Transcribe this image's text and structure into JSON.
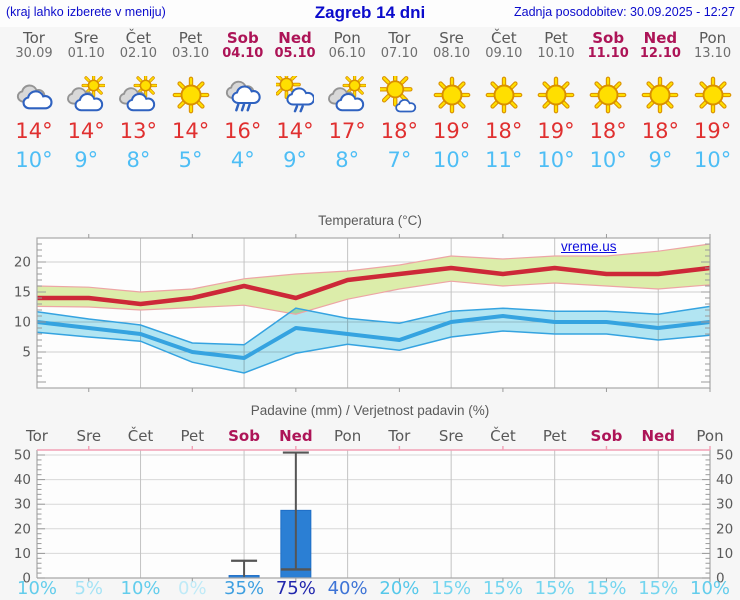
{
  "header": {
    "left_note": "(kraj lahko izberete v meniju)",
    "title": "Zagreb 14 dni",
    "updated": "Zadnja posodobitev: 30.09.2025 - 12:27"
  },
  "watermark": "vreme.us",
  "colors": {
    "header_blue": "#0b0bcc",
    "weekend": "#ad1457",
    "day_gray": "#585858",
    "tmax_red": "#e03030",
    "tmin_blue": "#4ebef5",
    "chart_max_line": "#cd2838",
    "chart_min_line": "#35a3e0",
    "max_band_fill": "#dcedaa",
    "max_band_edge": "#eda5a5",
    "min_band_fill": "#b4e7f4",
    "bar_blue": "#2b7fd4",
    "whisker_gray": "#555555",
    "plot_border": "#a8a8a8",
    "precip_top_border": "#f2a0b5"
  },
  "days": [
    {
      "name": "Tor",
      "date": "30.09",
      "weekend": false,
      "icon": "cloudy",
      "tmax": "14°",
      "tmin": "10°",
      "prob": "10%",
      "prob_color": "#63cdec"
    },
    {
      "name": "Sre",
      "date": "01.10",
      "weekend": false,
      "icon": "partly-cloudy",
      "tmax": "14°",
      "tmin": "9°",
      "prob": "5%",
      "prob_color": "#a5e3f5"
    },
    {
      "name": "Čet",
      "date": "02.10",
      "weekend": false,
      "icon": "partly-cloudy",
      "tmax": "13°",
      "tmin": "8°",
      "prob": "10%",
      "prob_color": "#63cdec"
    },
    {
      "name": "Pet",
      "date": "03.10",
      "weekend": false,
      "icon": "sunny",
      "tmax": "14°",
      "tmin": "5°",
      "prob": "0%",
      "prob_color": "#bfeaf7"
    },
    {
      "name": "Sob",
      "date": "04.10",
      "weekend": true,
      "icon": "rain",
      "tmax": "16°",
      "tmin": "4°",
      "prob": "35%",
      "prob_color": "#3e9fe0"
    },
    {
      "name": "Ned",
      "date": "05.10",
      "weekend": true,
      "icon": "sun-shower",
      "tmax": "14°",
      "tmin": "9°",
      "prob": "75%",
      "prob_color": "#2127ad"
    },
    {
      "name": "Pon",
      "date": "06.10",
      "weekend": false,
      "icon": "partly-cloudy",
      "tmax": "17°",
      "tmin": "8°",
      "prob": "40%",
      "prob_color": "#3e74d6"
    },
    {
      "name": "Tor",
      "date": "07.10",
      "weekend": false,
      "icon": "mostly-sunny",
      "tmax": "18°",
      "tmin": "7°",
      "prob": "20%",
      "prob_color": "#55c8ea"
    },
    {
      "name": "Sre",
      "date": "08.10",
      "weekend": false,
      "icon": "sunny",
      "tmax": "19°",
      "tmin": "10°",
      "prob": "15%",
      "prob_color": "#74d5ef"
    },
    {
      "name": "Čet",
      "date": "09.10",
      "weekend": false,
      "icon": "sunny",
      "tmax": "18°",
      "tmin": "11°",
      "prob": "15%",
      "prob_color": "#74d5ef"
    },
    {
      "name": "Pet",
      "date": "10.10",
      "weekend": false,
      "icon": "sunny",
      "tmax": "19°",
      "tmin": "10°",
      "prob": "15%",
      "prob_color": "#74d5ef"
    },
    {
      "name": "Sob",
      "date": "11.10",
      "weekend": true,
      "icon": "sunny",
      "tmax": "18°",
      "tmin": "10°",
      "prob": "15%",
      "prob_color": "#74d5ef"
    },
    {
      "name": "Ned",
      "date": "12.10",
      "weekend": true,
      "icon": "sunny",
      "tmax": "18°",
      "tmin": "9°",
      "prob": "15%",
      "prob_color": "#74d5ef"
    },
    {
      "name": "Pon",
      "date": "13.10",
      "weekend": false,
      "icon": "sunny",
      "tmax": "19°",
      "tmin": "10°",
      "prob": "10%",
      "prob_color": "#63cdec"
    }
  ],
  "chart_data": [
    {
      "type": "line",
      "title": "Temperatura (°C)",
      "x_labels": [
        "Tor",
        "Sre",
        "Čet",
        "Pet",
        "Sob",
        "Ned",
        "Pon",
        "Tor",
        "Sre",
        "Čet",
        "Pet",
        "Sob",
        "Ned",
        "Pon"
      ],
      "ylim": [
        -1,
        24
      ],
      "yticks": [
        5,
        10,
        15,
        20
      ],
      "grid": true,
      "series": [
        {
          "name": "max-temperature",
          "values": [
            14,
            14,
            13,
            14,
            16,
            14,
            17,
            18,
            19,
            18,
            19,
            18,
            18,
            19
          ]
        },
        {
          "name": "min-temperature",
          "values": [
            10,
            9,
            8,
            5,
            4,
            9,
            8,
            7,
            10,
            11,
            10,
            10,
            9,
            10
          ]
        }
      ],
      "bands": [
        {
          "name": "max-range",
          "upper": [
            16,
            15.8,
            15,
            15.5,
            17.2,
            18,
            18.5,
            19.5,
            21,
            20.5,
            21,
            21,
            21.8,
            23
          ],
          "lower": [
            12.6,
            12.5,
            12,
            12.4,
            12.8,
            11.3,
            13.8,
            15.5,
            16.8,
            16,
            16.5,
            16,
            15.5,
            16.2
          ]
        },
        {
          "name": "min-range",
          "upper": [
            11.7,
            10.5,
            9.5,
            6.5,
            6.2,
            12.3,
            10.6,
            9.8,
            11.8,
            12.3,
            11.8,
            11.8,
            11.3,
            12.6
          ],
          "lower": [
            8.3,
            7.5,
            6.8,
            3.3,
            1.5,
            4.8,
            6.3,
            5.3,
            7.5,
            8.5,
            8,
            8,
            7,
            7.8
          ]
        }
      ]
    },
    {
      "type": "bar",
      "title": "Padavine (mm) / Verjetnost padavin (%)",
      "x_labels": [
        "Tor",
        "Sre",
        "Čet",
        "Pet",
        "Sob",
        "Ned",
        "Pon",
        "Tor",
        "Sre",
        "Čet",
        "Pet",
        "Sob",
        "Ned",
        "Pon"
      ],
      "ylim": [
        0,
        52
      ],
      "yticks": [
        0,
        10,
        20,
        30,
        40,
        50
      ],
      "bars_mm": [
        0,
        0,
        0,
        0,
        1,
        27.5,
        0,
        0,
        0,
        0,
        0,
        0,
        0,
        0
      ],
      "whiskers": [
        null,
        null,
        null,
        null,
        {
          "low": 0.5,
          "high": 7,
          "median": null
        },
        {
          "low": 3.5,
          "high": 51,
          "median": 3.5
        },
        null,
        null,
        null,
        null,
        null,
        null,
        null,
        null
      ],
      "probabilities_pct": [
        10,
        5,
        10,
        0,
        35,
        75,
        40,
        20,
        15,
        15,
        15,
        15,
        15,
        10
      ]
    }
  ]
}
